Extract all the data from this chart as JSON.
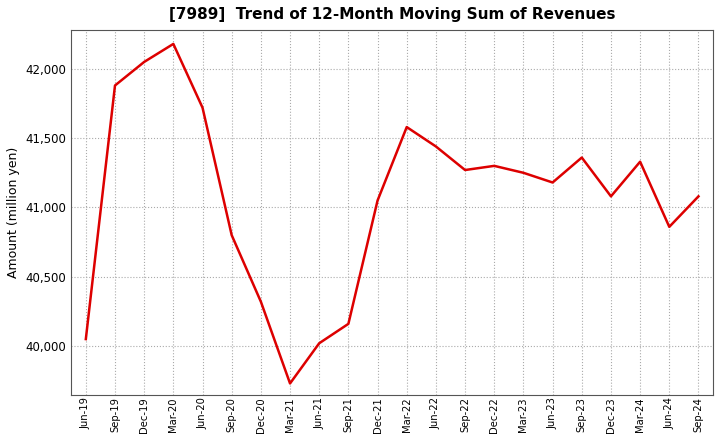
{
  "title": "[7989]  Trend of 12-Month Moving Sum of Revenues",
  "ylabel": "Amount (million yen)",
  "line_color": "#dd0000",
  "line_width": 1.8,
  "background_color": "#ffffff",
  "plot_bg_color": "#ffffff",
  "grid_color": "#aaaaaa",
  "spine_color": "#555555",
  "ylim": [
    39650,
    42280
  ],
  "yticks": [
    40000,
    40500,
    41000,
    41500,
    42000
  ],
  "x_labels": [
    "Jun-19",
    "Sep-19",
    "Dec-19",
    "Mar-20",
    "Jun-20",
    "Sep-20",
    "Dec-20",
    "Mar-21",
    "Jun-21",
    "Sep-21",
    "Dec-21",
    "Mar-22",
    "Jun-22",
    "Sep-22",
    "Dec-22",
    "Mar-23",
    "Jun-23",
    "Sep-23",
    "Dec-23",
    "Mar-24",
    "Jun-24",
    "Sep-24"
  ],
  "values": [
    40050,
    41880,
    42050,
    42180,
    41720,
    40800,
    40320,
    39730,
    40020,
    40160,
    41050,
    41580,
    41440,
    41270,
    41300,
    41250,
    41180,
    41360,
    41080,
    41330,
    40860,
    41080
  ]
}
